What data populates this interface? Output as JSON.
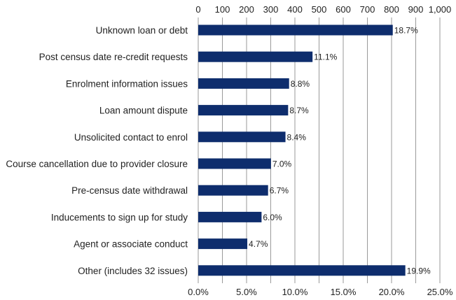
{
  "chart_data": {
    "type": "bar",
    "orientation": "horizontal",
    "categories": [
      "Unknown loan or debt",
      "Post census date re-credit requests",
      "Enrolment information issues",
      "Loan amount dispute",
      "Unsolicited contact to enrol",
      "Course cancellation due to provider closure",
      "Pre-census date withdrawal",
      "Inducements to sign up for study",
      "Agent or associate conduct",
      "Other (includes 32 issues)"
    ],
    "values": [
      805,
      473,
      376,
      372,
      361,
      301,
      289,
      262,
      203,
      857
    ],
    "percent_labels": [
      "18.7%",
      "11.1%",
      "8.8%",
      "8.7%",
      "8.4%",
      "7.0%",
      "6.7%",
      "6.0%",
      "4.7%",
      "19.9%"
    ],
    "top_axis": {
      "range": [
        0,
        1000
      ],
      "ticks": [
        0,
        100,
        200,
        300,
        400,
        500,
        600,
        700,
        800,
        900,
        1000
      ],
      "tick_labels": [
        "0",
        "100",
        "200",
        "300",
        "400",
        "500",
        "600",
        "700",
        "800",
        "900",
        "1,000"
      ]
    },
    "bottom_axis": {
      "range": [
        0,
        25
      ],
      "ticks": [
        0,
        5,
        10,
        15,
        20,
        25
      ],
      "tick_labels": [
        "0.0%",
        "5.0%",
        "10.0%",
        "15.0%",
        "20.0%",
        "25.0%"
      ]
    },
    "grid": true,
    "legend": "none",
    "bar_color": "#0e2d6d",
    "title": "",
    "xlabel": "",
    "ylabel": ""
  }
}
